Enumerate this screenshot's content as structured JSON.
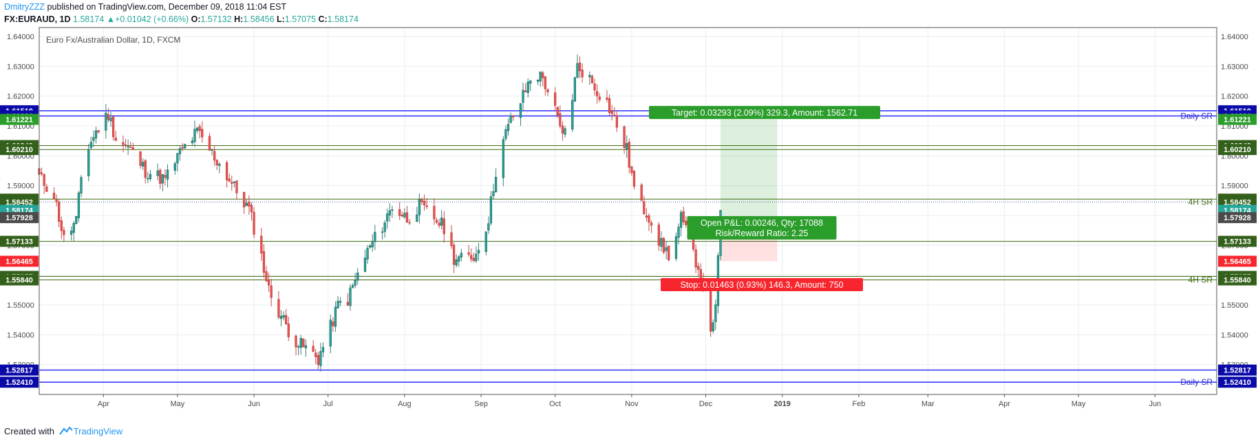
{
  "header": {
    "author": "DmitryZZZ",
    "published": " published on TradingView.com, December 09, 2018 11:04 EST"
  },
  "symbol_line": {
    "symbol": "FX:EURAUD, 1D",
    "last": "1.58174",
    "change": "+0.01042 (+0.66%)",
    "o_label": "O:",
    "o": "1.57132",
    "h_label": "H:",
    "h": "1.58456",
    "l_label": "L:",
    "l": "1.57075",
    "c_label": "C:",
    "c": "1.58174"
  },
  "footer": {
    "created_with": "Created with",
    "brand": "TradingView"
  },
  "chart_data": {
    "type": "candlestick",
    "title": "Euro Fx/Australian Dollar, 1D, FXCM",
    "y_range": [
      1.52,
      1.643
    ],
    "y_ticks": [
      "1.64000",
      "1.63000",
      "1.62000",
      "1.61000",
      "1.60000",
      "1.59000",
      "1.58000",
      "1.57000",
      "1.56000",
      "1.55000",
      "1.54000",
      "1.53000"
    ],
    "x_range": [
      "2018-03-06",
      "2019-06-26"
    ],
    "x_ticks": [
      {
        "label": "Apr",
        "date": "2018-04-01"
      },
      {
        "label": "May",
        "date": "2018-05-01"
      },
      {
        "label": "Jun",
        "date": "2018-06-01"
      },
      {
        "label": "Jul",
        "date": "2018-07-01"
      },
      {
        "label": "Aug",
        "date": "2018-08-01"
      },
      {
        "label": "Sep",
        "date": "2018-09-01"
      },
      {
        "label": "Oct",
        "date": "2018-10-01"
      },
      {
        "label": "Nov",
        "date": "2018-11-01"
      },
      {
        "label": "Dec",
        "date": "2018-12-01"
      },
      {
        "label": "2019",
        "date": "2019-01-01",
        "bold": true
      },
      {
        "label": "Feb",
        "date": "2019-02-01"
      },
      {
        "label": "Mar",
        "date": "2019-03-01"
      },
      {
        "label": "Apr",
        "date": "2019-04-01"
      },
      {
        "label": "May",
        "date": "2019-05-01"
      },
      {
        "label": "Jun",
        "date": "2019-06-01"
      }
    ],
    "grid": true,
    "closes": [
      {
        "date": "2018-03-06",
        "close": 1.593
      },
      {
        "date": "2018-03-12",
        "close": 1.587
      },
      {
        "date": "2018-03-16",
        "close": 1.572
      },
      {
        "date": "2018-03-21",
        "close": 1.578
      },
      {
        "date": "2018-03-24",
        "close": 1.6
      },
      {
        "date": "2018-03-29",
        "close": 1.608
      },
      {
        "date": "2018-04-03",
        "close": 1.614
      },
      {
        "date": "2018-04-06",
        "close": 1.606
      },
      {
        "date": "2018-04-12",
        "close": 1.602
      },
      {
        "date": "2018-04-18",
        "close": 1.595
      },
      {
        "date": "2018-04-26",
        "close": 1.592
      },
      {
        "date": "2018-05-02",
        "close": 1.601
      },
      {
        "date": "2018-05-09",
        "close": 1.608
      },
      {
        "date": "2018-05-14",
        "close": 1.602
      },
      {
        "date": "2018-05-19",
        "close": 1.596
      },
      {
        "date": "2018-05-25",
        "close": 1.588
      },
      {
        "date": "2018-05-30",
        "close": 1.582
      },
      {
        "date": "2018-06-03",
        "close": 1.57
      },
      {
        "date": "2018-06-07",
        "close": 1.555
      },
      {
        "date": "2018-06-11",
        "close": 1.548
      },
      {
        "date": "2018-06-16",
        "close": 1.54
      },
      {
        "date": "2018-06-19",
        "close": 1.537
      },
      {
        "date": "2018-06-23",
        "close": 1.535
      },
      {
        "date": "2018-06-27",
        "close": 1.532
      },
      {
        "date": "2018-07-01",
        "close": 1.54
      },
      {
        "date": "2018-07-05",
        "close": 1.55
      },
      {
        "date": "2018-07-09",
        "close": 1.552
      },
      {
        "date": "2018-07-13",
        "close": 1.56
      },
      {
        "date": "2018-07-17",
        "close": 1.568
      },
      {
        "date": "2018-07-22",
        "close": 1.575
      },
      {
        "date": "2018-07-27",
        "close": 1.583
      },
      {
        "date": "2018-08-02",
        "close": 1.579
      },
      {
        "date": "2018-08-07",
        "close": 1.583
      },
      {
        "date": "2018-08-12",
        "close": 1.58
      },
      {
        "date": "2018-08-17",
        "close": 1.576
      },
      {
        "date": "2018-08-21",
        "close": 1.566
      },
      {
        "date": "2018-08-25",
        "close": 1.565
      },
      {
        "date": "2018-08-30",
        "close": 1.567
      },
      {
        "date": "2018-09-04",
        "close": 1.579
      },
      {
        "date": "2018-09-07",
        "close": 1.595
      },
      {
        "date": "2018-09-10",
        "close": 1.605
      },
      {
        "date": "2018-09-13",
        "close": 1.612
      },
      {
        "date": "2018-09-17",
        "close": 1.618
      },
      {
        "date": "2018-09-22",
        "close": 1.628
      },
      {
        "date": "2018-09-26",
        "close": 1.626
      },
      {
        "date": "2018-09-30",
        "close": 1.618
      },
      {
        "date": "2018-10-04",
        "close": 1.606
      },
      {
        "date": "2018-10-07",
        "close": 1.615
      },
      {
        "date": "2018-10-10",
        "close": 1.63
      },
      {
        "date": "2018-10-14",
        "close": 1.627
      },
      {
        "date": "2018-10-18",
        "close": 1.622
      },
      {
        "date": "2018-10-22",
        "close": 1.618
      },
      {
        "date": "2018-10-26",
        "close": 1.61
      },
      {
        "date": "2018-10-30",
        "close": 1.602
      },
      {
        "date": "2018-11-03",
        "close": 1.585
      },
      {
        "date": "2018-11-08",
        "close": 1.58
      },
      {
        "date": "2018-11-13",
        "close": 1.57
      },
      {
        "date": "2018-11-17",
        "close": 1.566
      },
      {
        "date": "2018-11-21",
        "close": 1.579
      },
      {
        "date": "2018-11-25",
        "close": 1.57
      },
      {
        "date": "2018-11-29",
        "close": 1.56
      },
      {
        "date": "2018-12-02",
        "close": 1.54
      },
      {
        "date": "2018-12-05",
        "close": 1.548
      },
      {
        "date": "2018-12-07",
        "close": 1.5817
      }
    ],
    "levels": [
      {
        "price": 1.6151,
        "label": "1.61510",
        "color": "#1a1aff",
        "bg": "#0a0aa8"
      },
      {
        "price": 1.61336,
        "label": "1.61336",
        "color": "#1a1aff",
        "bg": "#0a0aa8"
      },
      {
        "price": 1.61221,
        "label": "1.61221",
        "color": null,
        "bg": "#2a9d2a"
      },
      {
        "price": 1.60343,
        "label": "1.60343",
        "color": "#3d6b12",
        "bg": "#33601a"
      },
      {
        "price": 1.6021,
        "label": "1.60210",
        "color": "#3d6b12",
        "bg": "#33601a"
      },
      {
        "price": 1.58547,
        "label": "1.58547",
        "color": "#3d6b12",
        "bg": "#33601a"
      },
      {
        "price": 1.58452,
        "label": "1.58452",
        "color": "#3b5b9d",
        "bg": "#33601a",
        "dotted": true
      },
      {
        "price": 1.58174,
        "label": "1.58174",
        "color": null,
        "bg": "#26a69a"
      },
      {
        "price": 1.57928,
        "label": "1.57928",
        "color": null,
        "bg": "#4a4a4a"
      },
      {
        "price": 1.57133,
        "label": "1.57133",
        "color": "#3d6b12",
        "bg": "#33601a"
      },
      {
        "price": 1.56465,
        "label": "1.56465",
        "color": null,
        "bg": "#f7262e"
      },
      {
        "price": 1.55957,
        "label": "1.55957",
        "color": "#3d6b12",
        "bg": "#33601a"
      },
      {
        "price": 1.5584,
        "label": "1.55840",
        "color": "#3d6b12",
        "bg": "#33601a"
      },
      {
        "price": 1.52817,
        "label": "1.52817",
        "color": "#1a1aff",
        "bg": "#0a0aa8"
      },
      {
        "price": 1.5241,
        "label": "1.52410",
        "color": "#1a1aff",
        "bg": "#0a0aa8"
      }
    ],
    "zone_labels": [
      {
        "text": "Daily SR",
        "price": 1.61336,
        "color": "#2a2acc"
      },
      {
        "text": "4H SR",
        "price": 1.58452,
        "color": "#3d6b12"
      },
      {
        "text": "4H SR",
        "price": 1.5584,
        "color": "#3d6b12"
      },
      {
        "text": "Daily SR",
        "price": 1.5241,
        "color": "#2a2acc"
      }
    ],
    "position": {
      "start_date": "2018-12-07",
      "end_date": "2018-12-30",
      "entry": 1.57928,
      "target": 1.61221,
      "stop": 1.56465,
      "target_label": "Target: 0.03293 (2.09%) 329.3, Amount: 1562.71",
      "open_pnl_label": "Open P&L: 0.00246, Qty: 17088",
      "rr_label": "Risk/Reward Ratio: 2.25",
      "stop_label": "Stop: 0.01463 (0.93%) 146.3, Amount: 750"
    },
    "colors": {
      "up": "#26a69a",
      "down": "#ef5350",
      "wick": "#737375",
      "grid": "#e9edf2",
      "border": "#555555"
    }
  }
}
